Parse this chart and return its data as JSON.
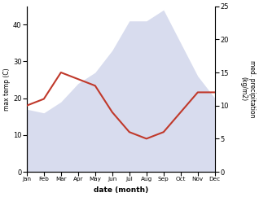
{
  "months": [
    "Jan",
    "Feb",
    "Mar",
    "Apr",
    "May",
    "Jun",
    "Jul",
    "Aug",
    "Sep",
    "Oct",
    "Nov",
    "Dec"
  ],
  "month_indices": [
    1,
    2,
    3,
    4,
    5,
    6,
    7,
    8,
    9,
    10,
    11,
    12
  ],
  "max_temp": [
    17,
    16,
    19,
    24,
    27,
    33,
    41,
    41,
    44,
    35,
    26,
    20
  ],
  "precipitation": [
    10,
    11,
    15,
    14,
    13,
    9,
    6,
    5,
    6,
    9,
    12,
    12
  ],
  "temp_color": "#c0392b",
  "precip_fill_color": "#b8c0e0",
  "xlabel": "date (month)",
  "ylabel_left": "max temp (C)",
  "ylabel_right": "med. precipitation\n(kg/m2)",
  "ylim_left": [
    0,
    45
  ],
  "ylim_right": [
    0,
    25
  ],
  "yticks_left": [
    0,
    10,
    20,
    30,
    40
  ],
  "yticks_right": [
    0,
    5,
    10,
    15,
    20,
    25
  ],
  "bg_color": "#ffffff",
  "line_width": 1.5
}
